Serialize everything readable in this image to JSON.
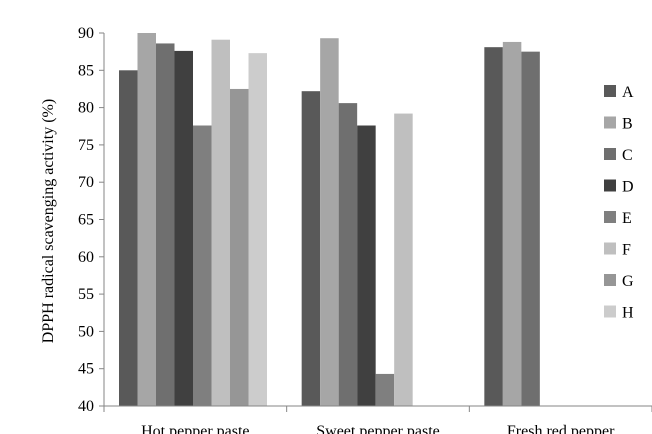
{
  "chart_data": {
    "type": "bar",
    "title": "",
    "xlabel": "",
    "ylabel": "DPPH radical scavenging activity (%)",
    "ylim": [
      40,
      90
    ],
    "yticks": [
      40,
      45,
      50,
      55,
      60,
      65,
      70,
      75,
      80,
      85,
      90
    ],
    "grid": false,
    "legend_position": "right",
    "categories": [
      "Hot pepper paste",
      "Sweet pepper paste",
      "Fresh red pepper"
    ],
    "series": [
      {
        "name": "A",
        "color": "#595959",
        "values": [
          85.0,
          82.2,
          88.1
        ]
      },
      {
        "name": "B",
        "color": "#a6a6a6",
        "values": [
          90.0,
          89.3,
          88.8
        ]
      },
      {
        "name": "C",
        "color": "#6f6f6f",
        "values": [
          88.6,
          80.6,
          87.5
        ]
      },
      {
        "name": "D",
        "color": "#404040",
        "values": [
          87.6,
          77.6,
          null
        ]
      },
      {
        "name": "E",
        "color": "#7f7f7f",
        "values": [
          77.6,
          44.3,
          null
        ]
      },
      {
        "name": "F",
        "color": "#bfbfbf",
        "values": [
          89.1,
          79.2,
          null
        ]
      },
      {
        "name": "G",
        "color": "#969696",
        "values": [
          82.5,
          null,
          null
        ]
      },
      {
        "name": "H",
        "color": "#cccccc",
        "values": [
          87.3,
          null,
          null
        ]
      }
    ]
  }
}
